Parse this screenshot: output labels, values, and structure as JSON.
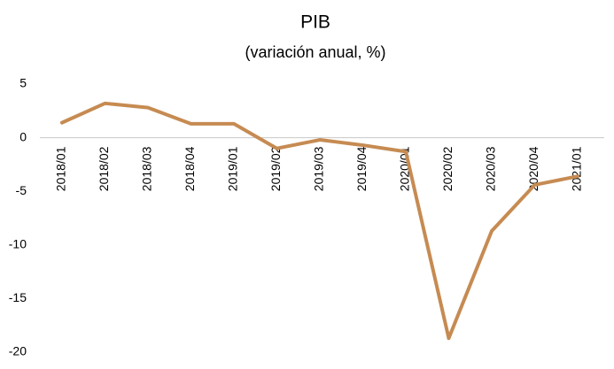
{
  "chart_data": {
    "type": "line",
    "title": "PIB",
    "subtitle": "(variación anual, %)",
    "categories": [
      "2018/01",
      "2018/02",
      "2018/03",
      "2018/04",
      "2019/01",
      "2019/02",
      "2019/03",
      "2019/04",
      "2020/01",
      "2020/02",
      "2020/03",
      "2020/04",
      "2021/01"
    ],
    "values": [
      1.4,
      3.2,
      2.8,
      1.3,
      1.3,
      -1.0,
      -0.2,
      -0.7,
      -1.3,
      -18.7,
      -8.7,
      -4.4,
      -3.6
    ],
    "color": "#c68b52",
    "ylim": [
      -20,
      5
    ],
    "yticks": [
      -20,
      -15,
      -10,
      -5,
      0,
      5
    ]
  }
}
